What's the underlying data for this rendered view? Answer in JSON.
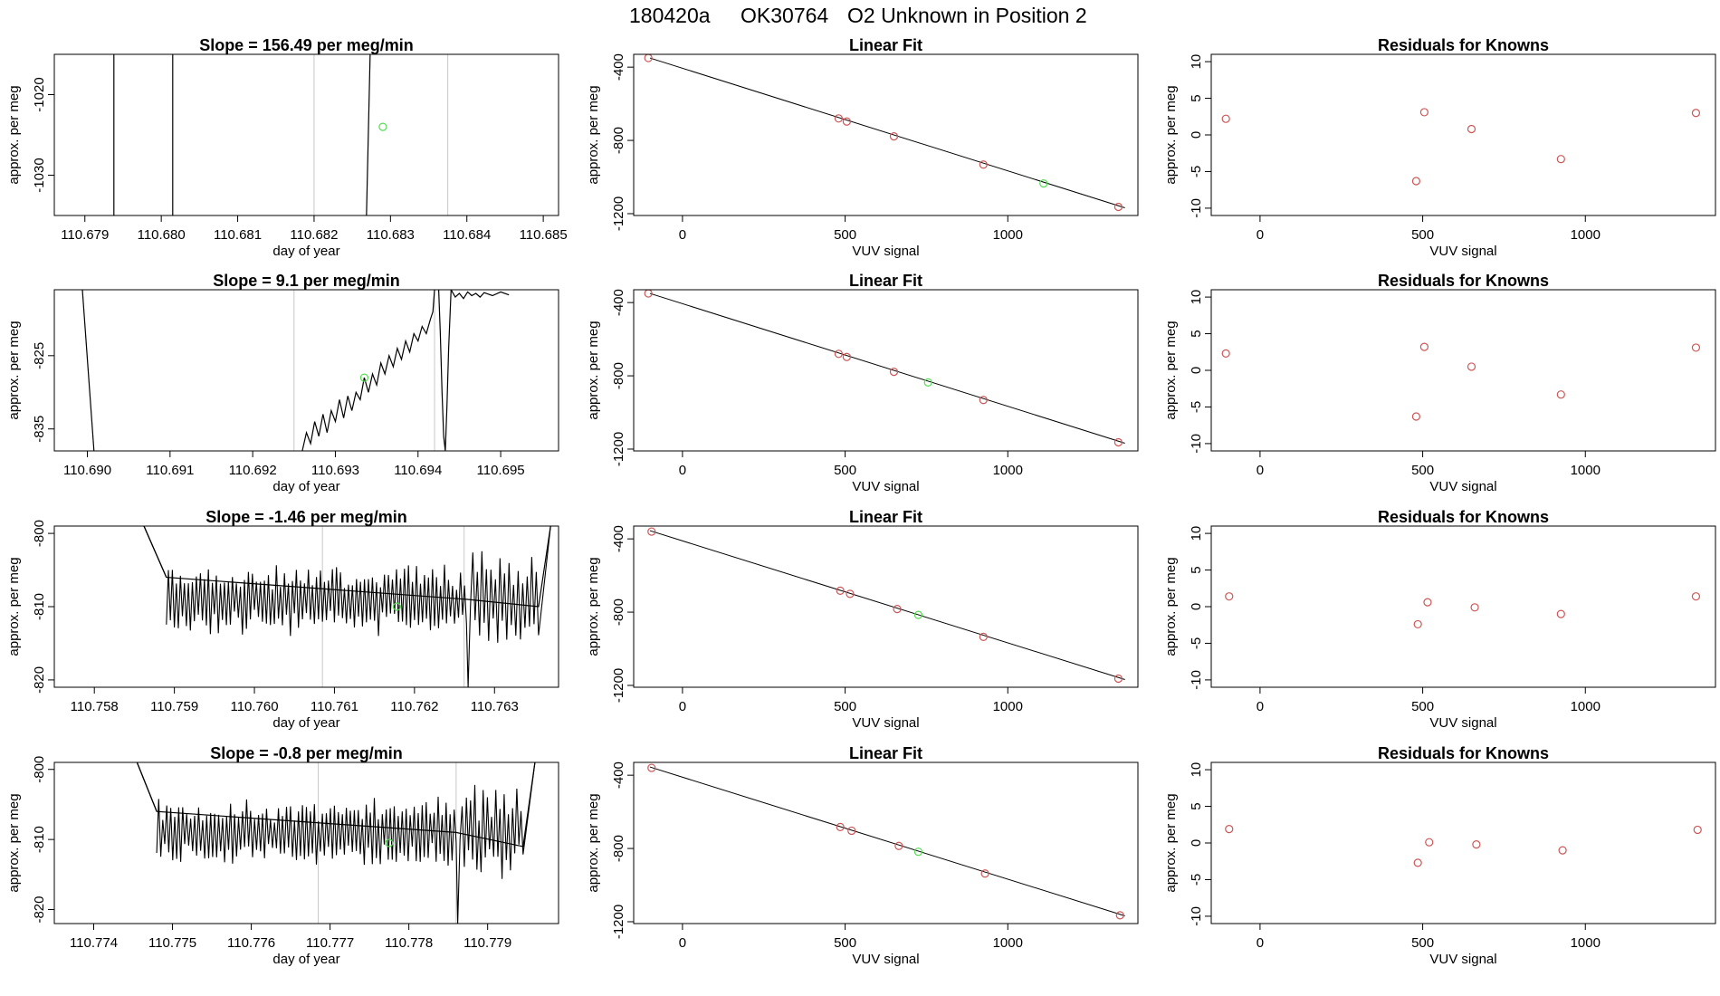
{
  "header": {
    "run_id": "180420a",
    "tank_id": "OK30764",
    "description": "O2 Unknown in Position  2"
  },
  "colors": {
    "trace": "#000000",
    "marker_line": "#c8c8c8",
    "known_point": "#cd5555",
    "unknown_point": "#55dd55",
    "fit_line": "#000000"
  },
  "chart_data": [
    {
      "type": "line",
      "row": 1,
      "panel": "trace",
      "title": "Slope =  156.49  per meg/min",
      "xlabel": "day of year",
      "ylabel": "approx. per meg",
      "xlim": [
        110.6786,
        110.6852
      ],
      "ylim": [
        -1035,
        -1015
      ],
      "xticks": [
        110.679,
        110.68,
        110.681,
        110.682,
        110.683,
        110.684,
        110.685
      ],
      "xtick_labels": [
        "110.679",
        "110.680",
        "110.681",
        "110.682",
        "110.683",
        "110.684",
        "110.685"
      ],
      "yticks": [
        -1020,
        -1030
      ],
      "ytick_labels": [
        "-1020",
        "-1030"
      ],
      "vlines": [
        110.682,
        110.68375
      ],
      "series": [
        {
          "x": [
            110.67938,
            110.67938
          ],
          "y": [
            -1050,
            -1000
          ]
        },
        {
          "x": [
            110.68015,
            110.68015
          ],
          "y": [
            -1050,
            -1000
          ]
        },
        {
          "x": [
            110.68265,
            110.68277
          ],
          "y": [
            -1050,
            -1000
          ]
        }
      ],
      "unknown_points": [
        {
          "x": 110.6829,
          "y": -1024
        }
      ],
      "grid": false
    },
    {
      "type": "scatter",
      "row": 1,
      "panel": "fit",
      "title": "Linear Fit",
      "xlabel": "VUV signal",
      "ylabel": "approx. per meg",
      "xlim": [
        -150,
        1400
      ],
      "ylim": [
        -1210,
        -330
      ],
      "xticks": [
        0,
        500,
        1000
      ],
      "xtick_labels": [
        "0",
        "500",
        "1000"
      ],
      "yticks": [
        -400,
        -800,
        -1200
      ],
      "ytick_labels": [
        "-400",
        "-800",
        "-1200"
      ],
      "fit_line": {
        "x": [
          -100,
          1360
        ],
        "y": [
          -350,
          -1168
        ]
      },
      "known_points": [
        {
          "x": -105,
          "y": -350
        },
        {
          "x": 480,
          "y": -680
        },
        {
          "x": 505,
          "y": -697
        },
        {
          "x": 650,
          "y": -778
        },
        {
          "x": 925,
          "y": -932
        },
        {
          "x": 1340,
          "y": -1163
        }
      ],
      "unknown_points": [
        {
          "x": 1110,
          "y": -1035
        }
      ],
      "grid": false
    },
    {
      "type": "scatter",
      "row": 1,
      "panel": "residuals",
      "title": "Residuals for Knowns",
      "xlabel": "VUV signal",
      "ylabel": "approx. per meg",
      "xlim": [
        -150,
        1400
      ],
      "ylim": [
        -11,
        11
      ],
      "xticks": [
        0,
        500,
        1000
      ],
      "xtick_labels": [
        "0",
        "500",
        "1000"
      ],
      "yticks": [
        10,
        5,
        0,
        -5,
        -10
      ],
      "ytick_labels": [
        "10",
        "5",
        "0",
        "-5",
        "-10"
      ],
      "known_points": [
        {
          "x": -105,
          "y": 2.2
        },
        {
          "x": 480,
          "y": -6.3
        },
        {
          "x": 505,
          "y": 3.1
        },
        {
          "x": 650,
          "y": 0.8
        },
        {
          "x": 925,
          "y": -3.3
        },
        {
          "x": 1340,
          "y": 3.0
        }
      ],
      "grid": false
    },
    {
      "type": "line",
      "row": 2,
      "panel": "trace",
      "title": "Slope =  9.1  per meg/min",
      "xlabel": "day of year",
      "ylabel": "approx. per meg",
      "xlim": [
        110.6896,
        110.6957
      ],
      "ylim": [
        -838,
        -816
      ],
      "xticks": [
        110.69,
        110.691,
        110.692,
        110.693,
        110.694,
        110.695
      ],
      "xtick_labels": [
        "110.690",
        "110.691",
        "110.692",
        "110.693",
        "110.694",
        "110.695"
      ],
      "yticks": [
        -825,
        -835
      ],
      "ytick_labels": [
        "-825",
        "-835"
      ],
      "vlines": [
        110.6925,
        110.6942
      ],
      "series": [
        {
          "x": [
            110.68994,
            110.69008
          ],
          "y": [
            -816,
            -838
          ]
        },
        {
          "x": [
            110.6926,
            110.69265,
            110.6927,
            110.69275,
            110.6928,
            110.69285,
            110.6929,
            110.69295,
            110.693,
            110.69305,
            110.6931,
            110.69315,
            110.6932,
            110.69325,
            110.6933,
            110.69335,
            110.6934,
            110.69345,
            110.6935,
            110.69355,
            110.6936,
            110.69365,
            110.6937,
            110.69375,
            110.6938,
            110.69385,
            110.6939,
            110.69395,
            110.694,
            110.69405,
            110.6941,
            110.69415,
            110.69418,
            110.6942
          ],
          "y": [
            -838,
            -835.5,
            -837,
            -834,
            -836,
            -833,
            -835.5,
            -832.5,
            -834,
            -831,
            -833.5,
            -830.5,
            -832.5,
            -830,
            -831,
            -828,
            -830,
            -827.5,
            -829,
            -826,
            -827.5,
            -825,
            -826.5,
            -824,
            -825.5,
            -823,
            -824.5,
            -822,
            -823,
            -821,
            -822,
            -820,
            -819,
            -816
          ]
        },
        {
          "x": [
            110.69425,
            110.69427,
            110.69429,
            110.69431,
            110.69433,
            110.69435,
            110.69437,
            110.6944
          ],
          "y": [
            -816,
            -822,
            -830,
            -836,
            -838,
            -832,
            -824,
            -816
          ]
        },
        {
          "x": [
            110.6944,
            110.69445,
            110.6945,
            110.69455,
            110.6946,
            110.69465,
            110.6947,
            110.69475,
            110.6948,
            110.6949,
            110.695,
            110.6951
          ],
          "y": [
            -816,
            -817,
            -816.5,
            -817.2,
            -816.3,
            -816.8,
            -816.5,
            -817.0,
            -816.4,
            -816.8,
            -816.3,
            -816.7
          ]
        }
      ],
      "unknown_points": [
        {
          "x": 110.69335,
          "y": -828
        }
      ],
      "grid": false
    },
    {
      "type": "scatter",
      "row": 2,
      "panel": "fit",
      "title": "Linear Fit",
      "xlabel": "VUV signal",
      "ylabel": "approx. per meg",
      "xlim": [
        -150,
        1400
      ],
      "ylim": [
        -1210,
        -330
      ],
      "xticks": [
        0,
        500,
        1000
      ],
      "xtick_labels": [
        "0",
        "500",
        "1000"
      ],
      "yticks": [
        -400,
        -800,
        -1200
      ],
      "ytick_labels": [
        "-400",
        "-800",
        "-1200"
      ],
      "fit_line": {
        "x": [
          -100,
          1360
        ],
        "y": [
          -350,
          -1168
        ]
      },
      "known_points": [
        {
          "x": -105,
          "y": -350
        },
        {
          "x": 480,
          "y": -680
        },
        {
          "x": 505,
          "y": -697
        },
        {
          "x": 650,
          "y": -778
        },
        {
          "x": 925,
          "y": -932
        },
        {
          "x": 1340,
          "y": -1163
        }
      ],
      "unknown_points": [
        {
          "x": 755,
          "y": -836
        }
      ],
      "grid": false
    },
    {
      "type": "scatter",
      "row": 2,
      "panel": "residuals",
      "title": "Residuals for Knowns",
      "xlabel": "VUV signal",
      "ylabel": "approx. per meg",
      "xlim": [
        -150,
        1400
      ],
      "ylim": [
        -11,
        11
      ],
      "xticks": [
        0,
        500,
        1000
      ],
      "xtick_labels": [
        "0",
        "500",
        "1000"
      ],
      "yticks": [
        10,
        5,
        0,
        -5,
        -10
      ],
      "ytick_labels": [
        "10",
        "5",
        "0",
        "-5",
        "-10"
      ],
      "known_points": [
        {
          "x": -105,
          "y": 2.3
        },
        {
          "x": 480,
          "y": -6.3
        },
        {
          "x": 505,
          "y": 3.2
        },
        {
          "x": 650,
          "y": 0.5
        },
        {
          "x": 925,
          "y": -3.3
        },
        {
          "x": 1340,
          "y": 3.1
        }
      ],
      "grid": false
    },
    {
      "type": "line",
      "row": 3,
      "panel": "trace",
      "title": "Slope =  -1.46  per meg/min",
      "xlabel": "day of year",
      "ylabel": "approx. per meg",
      "xlim": [
        110.7575,
        110.7638
      ],
      "ylim": [
        -821,
        -799
      ],
      "xticks": [
        110.758,
        110.759,
        110.76,
        110.761,
        110.762,
        110.763
      ],
      "xtick_labels": [
        "110.758",
        "110.759",
        "110.760",
        "110.761",
        "110.762",
        "110.763"
      ],
      "yticks": [
        -800,
        -810,
        -820
      ],
      "ytick_labels": [
        "-800",
        "-810",
        "-820"
      ],
      "vlines": [
        110.76085,
        110.76262
      ],
      "noise_mean": -809,
      "series": [
        {
          "x": [
            110.75862,
            110.7589,
            110.76265,
            110.76355,
            110.7637
          ],
          "y": [
            -799,
            -806,
            -809,
            -810,
            -799
          ]
        }
      ],
      "unknown_points": [
        {
          "x": 110.76178,
          "y": -810
        }
      ],
      "grid": false
    },
    {
      "type": "scatter",
      "row": 3,
      "panel": "fit",
      "title": "Linear Fit",
      "xlabel": "VUV signal",
      "ylabel": "approx. per meg",
      "xlim": [
        -150,
        1400
      ],
      "ylim": [
        -1210,
        -330
      ],
      "xticks": [
        0,
        500,
        1000
      ],
      "xtick_labels": [
        "0",
        "500",
        "1000"
      ],
      "yticks": [
        -400,
        -800,
        -1200
      ],
      "ytick_labels": [
        "-400",
        "-800",
        "-1200"
      ],
      "fit_line": {
        "x": [
          -100,
          1360
        ],
        "y": [
          -355,
          -1168
        ]
      },
      "known_points": [
        {
          "x": -95,
          "y": -360
        },
        {
          "x": 485,
          "y": -683
        },
        {
          "x": 515,
          "y": -700
        },
        {
          "x": 660,
          "y": -783
        },
        {
          "x": 925,
          "y": -935
        },
        {
          "x": 1340,
          "y": -1163
        }
      ],
      "unknown_points": [
        {
          "x": 725,
          "y": -815
        }
      ],
      "grid": false
    },
    {
      "type": "scatter",
      "row": 3,
      "panel": "residuals",
      "title": "Residuals for Knowns",
      "xlabel": "VUV signal",
      "ylabel": "approx. per meg",
      "xlim": [
        -150,
        1400
      ],
      "ylim": [
        -11,
        11
      ],
      "xticks": [
        0,
        500,
        1000
      ],
      "xtick_labels": [
        "0",
        "500",
        "1000"
      ],
      "yticks": [
        10,
        5,
        0,
        -5,
        -10
      ],
      "ytick_labels": [
        "10",
        "5",
        "0",
        "-5",
        "-10"
      ],
      "known_points": [
        {
          "x": -95,
          "y": 1.4
        },
        {
          "x": 485,
          "y": -2.4
        },
        {
          "x": 515,
          "y": 0.6
        },
        {
          "x": 660,
          "y": -0.1
        },
        {
          "x": 925,
          "y": -1.0
        },
        {
          "x": 1340,
          "y": 1.4
        }
      ],
      "grid": false
    },
    {
      "type": "line",
      "row": 4,
      "panel": "trace",
      "title": "Slope =  -0.8  per meg/min",
      "xlabel": "day of year",
      "ylabel": "approx. per meg",
      "xlim": [
        110.7735,
        110.7799
      ],
      "ylim": [
        -822,
        -799
      ],
      "xticks": [
        110.774,
        110.775,
        110.776,
        110.777,
        110.778,
        110.779
      ],
      "xtick_labels": [
        "110.774",
        "110.775",
        "110.776",
        "110.777",
        "110.778",
        "110.779"
      ],
      "yticks": [
        -800,
        -810,
        -820
      ],
      "ytick_labels": [
        "-800",
        "-810",
        "-820"
      ],
      "vlines": [
        110.77685,
        110.7786
      ],
      "noise_mean": -809,
      "series": [
        {
          "x": [
            110.77455,
            110.7748,
            110.7786,
            110.77945,
            110.7796
          ],
          "y": [
            -799,
            -806,
            -809,
            -811,
            -799
          ]
        }
      ],
      "unknown_points": [
        {
          "x": 110.77775,
          "y": -810.5
        }
      ],
      "grid": false
    },
    {
      "type": "scatter",
      "row": 4,
      "panel": "fit",
      "title": "Linear Fit",
      "xlabel": "VUV signal",
      "ylabel": "approx. per meg",
      "xlim": [
        -150,
        1400
      ],
      "ylim": [
        -1210,
        -330
      ],
      "xticks": [
        0,
        500,
        1000
      ],
      "xtick_labels": [
        "0",
        "500",
        "1000"
      ],
      "yticks": [
        -400,
        -800,
        -1200
      ],
      "ytick_labels": [
        "-400",
        "-800",
        "-1200"
      ],
      "fit_line": {
        "x": [
          -100,
          1360
        ],
        "y": [
          -355,
          -1168
        ]
      },
      "known_points": [
        {
          "x": -95,
          "y": -360
        },
        {
          "x": 485,
          "y": -683
        },
        {
          "x": 520,
          "y": -703
        },
        {
          "x": 665,
          "y": -786
        },
        {
          "x": 930,
          "y": -937
        },
        {
          "x": 1345,
          "y": -1165
        }
      ],
      "unknown_points": [
        {
          "x": 725,
          "y": -818
        }
      ],
      "grid": false
    },
    {
      "type": "scatter",
      "row": 4,
      "panel": "residuals",
      "title": "Residuals for Knowns",
      "xlabel": "VUV signal",
      "ylabel": "approx. per meg",
      "xlim": [
        -150,
        1400
      ],
      "ylim": [
        -11,
        11
      ],
      "xticks": [
        0,
        500,
        1000
      ],
      "xtick_labels": [
        "0",
        "500",
        "1000"
      ],
      "yticks": [
        10,
        5,
        0,
        -5,
        -10
      ],
      "ytick_labels": [
        "10",
        "5",
        "0",
        "-5",
        "-10"
      ],
      "known_points": [
        {
          "x": -95,
          "y": 1.9
        },
        {
          "x": 485,
          "y": -2.7
        },
        {
          "x": 520,
          "y": 0.1
        },
        {
          "x": 665,
          "y": -0.2
        },
        {
          "x": 930,
          "y": -1.0
        },
        {
          "x": 1345,
          "y": 1.8
        }
      ],
      "grid": false
    }
  ]
}
